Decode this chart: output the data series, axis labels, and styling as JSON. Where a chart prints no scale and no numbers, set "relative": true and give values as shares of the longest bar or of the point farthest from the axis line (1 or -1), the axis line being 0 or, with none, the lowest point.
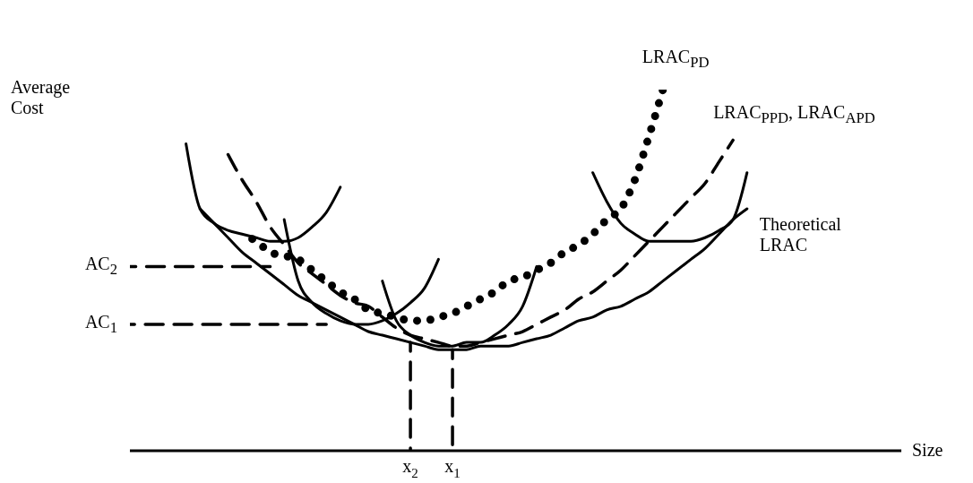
{
  "chart_data": {
    "type": "line",
    "relative": true,
    "marker": "none",
    "ylabel": "Average Cost",
    "xlabel": "Size",
    "categories": [
      null,
      null,
      null,
      null,
      null,
      null,
      null,
      null,
      null,
      null,
      null,
      null,
      null,
      null,
      null,
      null,
      null,
      null,
      null,
      null,
      "x$_{2}$",
      null,
      null,
      "x$_{1}$",
      null,
      null,
      null,
      null,
      null,
      null,
      null,
      null,
      null,
      null,
      null,
      null,
      null,
      null,
      null,
      null,
      null,
      null,
      null,
      null,
      null,
      null,
      null,
      null,
      null,
      null,
      null,
      null,
      null,
      null,
      null,
      null
    ],
    "series": [
      {
        "name": "Theoretical LRAC",
        "color": "#000000",
        "line_style": "solid",
        "values": [
          null,
          null,
          null,
          null,
          null,
          0.67,
          0.63,
          0.59,
          0.55,
          0.52,
          0.49,
          0.46,
          0.43,
          0.41,
          0.39,
          0.37,
          0.35,
          0.33,
          0.32,
          0.31,
          0.3,
          0.29,
          0.28,
          0.28,
          0.28,
          0.29,
          0.29,
          0.29,
          0.3,
          0.31,
          0.32,
          0.34,
          0.36,
          0.37,
          0.39,
          0.4,
          0.42,
          0.44,
          0.47,
          0.5,
          0.53,
          0.56,
          0.6,
          0.64,
          0.67,
          null,
          null,
          null,
          null,
          null,
          null,
          null,
          null,
          null,
          null,
          null
        ]
      },
      {
        "name": "LRAC$_{PD}$",
        "color": "#000000",
        "line_style": "dotted",
        "values": [
          null,
          null,
          null,
          null,
          null,
          null,
          null,
          null,
          0.6,
          0.58,
          0.55,
          0.54,
          0.53,
          0.5,
          0.47,
          0.44,
          0.42,
          0.39,
          0.38,
          0.37,
          0.36,
          0.36,
          0.37,
          0.38,
          0.4,
          0.42,
          0.44,
          0.47,
          0.48,
          0.5,
          0.52,
          0.55,
          0.57,
          0.6,
          0.64,
          0.67,
          0.75,
          0.87,
          1,
          null,
          null,
          null,
          null,
          null,
          null,
          null,
          null,
          null,
          null,
          null,
          null,
          null,
          null,
          null,
          null,
          null
        ]
      },
      {
        "name": "LRAC$_{PPD}$, LRAC$_{APD}$",
        "color": "#000000",
        "line_style": "dashed",
        "values": [
          null,
          null,
          null,
          null,
          null,
          null,
          null,
          0.82,
          0.75,
          0.69,
          0.62,
          0.57,
          0.52,
          0.49,
          0.46,
          0.43,
          0.41,
          0.4,
          0.37,
          0.34,
          0.32,
          0.31,
          0.3,
          0.29,
          0.29,
          0.3,
          0.31,
          0.32,
          0.33,
          0.35,
          0.37,
          0.39,
          0.42,
          0.44,
          0.47,
          0.5,
          0.54,
          0.58,
          0.62,
          0.66,
          0.7,
          0.74,
          0.8,
          0.86,
          null,
          null,
          null,
          null,
          null,
          null,
          null,
          null,
          null,
          null,
          null,
          null
        ]
      },
      {
        "color": "#000000",
        "line_style": "solid",
        "values": [
          null,
          null,
          null,
          null,
          0.85,
          0.67,
          0.63,
          0.61,
          0.6,
          0.59,
          0.58,
          0.58,
          0.59,
          0.62,
          0.66,
          0.73,
          null,
          null,
          null,
          null,
          null,
          null,
          null,
          null,
          null,
          null,
          null,
          null,
          null,
          null,
          null,
          null,
          null,
          null,
          null,
          null,
          null,
          null,
          null,
          null,
          null,
          null,
          null,
          null,
          null,
          null,
          null,
          null,
          null,
          null,
          null,
          null,
          null,
          null,
          null,
          null
        ]
      },
      {
        "color": "#000000",
        "line_style": "solid",
        "values": [
          null,
          null,
          null,
          null,
          null,
          null,
          null,
          null,
          null,
          null,
          null,
          0.64,
          0.47,
          0.41,
          0.38,
          0.36,
          0.35,
          0.35,
          0.36,
          0.38,
          0.41,
          0.45,
          0.53,
          null,
          null,
          null,
          null,
          null,
          null,
          null,
          null,
          null,
          null,
          null,
          null,
          null,
          null,
          null,
          null,
          null,
          null,
          null,
          null,
          null,
          null,
          null,
          null,
          null,
          null,
          null,
          null,
          null,
          null,
          null,
          null,
          null
        ]
      },
      {
        "color": "#000000",
        "line_style": "solid",
        "values": [
          null,
          null,
          null,
          null,
          null,
          null,
          null,
          null,
          null,
          null,
          null,
          null,
          null,
          null,
          null,
          null,
          null,
          null,
          0.47,
          0.36,
          0.32,
          0.3,
          0.29,
          0.29,
          0.3,
          0.3,
          0.32,
          0.35,
          0.4,
          0.51,
          null,
          null,
          null,
          null,
          null,
          null,
          null,
          null,
          null,
          null,
          null,
          null,
          null,
          null,
          null,
          null,
          null,
          null,
          null,
          null,
          null,
          null,
          null,
          null,
          null,
          null
        ]
      },
      {
        "color": "#000000",
        "line_style": "solid",
        "values": [
          null,
          null,
          null,
          null,
          null,
          null,
          null,
          null,
          null,
          null,
          null,
          null,
          null,
          null,
          null,
          null,
          null,
          null,
          null,
          null,
          null,
          null,
          null,
          null,
          null,
          null,
          null,
          null,
          null,
          null,
          null,
          null,
          null,
          0.77,
          0.69,
          0.63,
          0.6,
          0.58,
          0.58,
          0.58,
          0.58,
          0.59,
          0.61,
          0.64,
          0.77,
          null,
          null,
          null,
          null,
          null,
          null,
          null,
          null,
          null,
          null,
          null
        ]
      },
      {
        "name": "AC$_{2}$",
        "color": "#000000",
        "line_style": "dashed",
        "values": [
          0.51,
          0.51,
          0.51,
          0.51,
          0.51,
          0.51,
          0.51,
          0.51,
          0.51,
          0.51,
          0.51,
          null,
          null,
          null,
          null,
          null,
          null,
          null,
          null,
          null,
          null,
          null,
          null,
          null,
          null,
          null,
          null,
          null,
          null,
          null,
          null,
          null,
          null,
          null,
          null,
          null,
          null,
          null,
          null,
          null,
          null,
          null,
          null,
          null,
          null,
          null,
          null,
          null,
          null,
          null,
          null,
          null,
          null,
          null,
          null,
          null
        ]
      },
      {
        "name": "AC$_{1}$",
        "color": "#000000",
        "line_style": "dashed",
        "values": [
          0.35,
          0.35,
          0.35,
          0.35,
          0.35,
          0.35,
          0.35,
          0.35,
          0.35,
          0.35,
          0.35,
          0.35,
          0.35,
          0.35,
          0.35,
          null,
          null,
          null,
          null,
          null,
          null,
          null,
          null,
          null,
          null,
          null,
          null,
          null,
          null,
          null,
          null,
          null,
          null,
          null,
          null,
          null,
          null,
          null,
          null,
          null,
          null,
          null,
          null,
          null,
          null,
          null,
          null,
          null,
          null,
          null,
          null,
          null,
          null,
          null,
          null,
          null
        ]
      },
      {
        "color": "#000000",
        "line_style": "dashed",
        "x": [
          "x$_{2}$",
          "x$_{2}$"
        ],
        "values": [
          0,
          0.3
        ]
      },
      {
        "color": "#000000",
        "line_style": "dashed",
        "x": [
          "x$_{1}$",
          "x$_{1}$"
        ],
        "values": [
          0,
          0.28
        ]
      }
    ]
  }
}
